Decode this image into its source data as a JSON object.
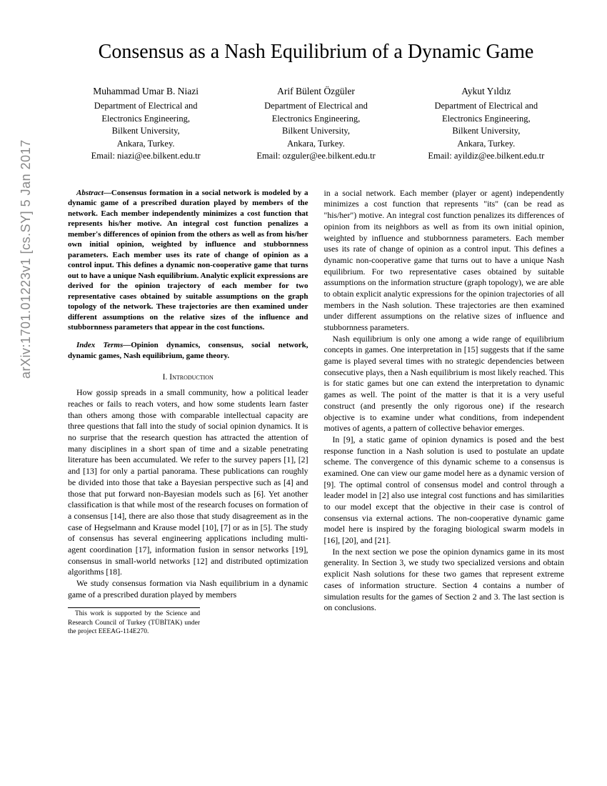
{
  "arxiv_stamp": "arXiv:1701.01223v1  [cs.SY]  5 Jan 2017",
  "title": "Consensus as a Nash Equilibrium of a Dynamic Game",
  "authors": [
    {
      "name": "Muhammad Umar B. Niazi",
      "dept": "Department of Electrical and",
      "dept2": "Electronics Engineering,",
      "univ": "Bilkent University,",
      "loc": "Ankara, Turkey.",
      "email": "Email: niazi@ee.bilkent.edu.tr"
    },
    {
      "name": "Arif Bülent Özgüler",
      "dept": "Department of Electrical and",
      "dept2": "Electronics Engineering,",
      "univ": "Bilkent University,",
      "loc": "Ankara, Turkey.",
      "email": "Email: ozguler@ee.bilkent.edu.tr"
    },
    {
      "name": "Aykut Yıldız",
      "dept": "Department of Electrical and",
      "dept2": "Electronics Engineering,",
      "univ": "Bilkent University,",
      "loc": "Ankara, Turkey.",
      "email": "Email: ayildiz@ee.bilkent.edu.tr"
    }
  ],
  "abstract_label": "Abstract—",
  "abstract": "Consensus formation in a social network is modeled by a dynamic game of a prescribed duration played by members of the network. Each member independently minimizes a cost function that represents his/her motive. An integral cost function penalizes a member's differences of opinion from the others as well as from his/her own initial opinion, weighted by influence and stubbornness parameters. Each member uses its rate of change of opinion as a control input. This defines a dynamic non-cooperative game that turns out to have a unique Nash equilibrium. Analytic explicit expressions are derived for the opinion trajectory of each member for two representative cases obtained by suitable assumptions on the graph topology of the network. These trajectories are then examined under different assumptions on the relative sizes of the influence and stubbornness parameters that appear in the cost functions.",
  "index_terms_label": "Index Terms—",
  "index_terms": "Opinion dynamics, consensus, social network, dynamic games, Nash equilibrium, game theory.",
  "section1_heading": "I.  Introduction",
  "intro_p1": "How gossip spreads in a small community, how a political leader reaches or fails to reach voters, and how some students learn faster than others among those with comparable intellectual capacity are three questions that fall into the study of social opinion dynamics. It is no surprise that the research question has attracted the attention of many disciplines in a short span of time and a sizable penetrating literature has been accumulated. We refer to the survey papers [1], [2] and [13] for only a partial panorama. These publications can roughly be divided into those that take a Bayesian perspective such as [4] and those that put forward non-Bayesian models such as [6]. Yet another classification is that while most of the research focuses on formation of a consensus [14], there are also those that study disagreement as in the case of Hegselmann and Krause model [10], [7] or as in [5]. The study of consensus has several engineering applications including multi-agent coordination [17], information fusion in sensor networks [19], consensus in small-world networks [12] and distributed optimization algorithms [18].",
  "intro_p2": "We study consensus formation via Nash equilibrium in a dynamic game of a prescribed duration played by members",
  "footnote": "This work is supported by the Science and Research Council of Turkey (TÜBİTAK) under the project EEEAG-114E270.",
  "col2_p1": "in a social network. Each member (player or agent) independently minimizes a cost function that represents \"its\" (can be read as \"his/her\") motive. An integral cost function penalizes its differences of opinion from its neighbors as well as from its own initial opinion, weighted by influence and stubbornness parameters. Each member uses its rate of change of opinion as a control input. This defines a dynamic non-cooperative game that turns out to have a unique Nash equilibrium. For two representative cases obtained by suitable assumptions on the information structure (graph topology), we are able to obtain explicit analytic expressions for the opinion trajectories of all members in the Nash solution. These trajectories are then examined under different assumptions on the relative sizes of influence and stubbornness parameters.",
  "col2_p2": "Nash equilibrium is only one among a wide range of equilibrium concepts in games. One interpretation in [15] suggests that if the same game is played several times with no strategic dependencies between consecutive plays, then a Nash equilibrium is most likely reached. This is for static games but one can extend the interpretation to dynamic games as well. The point of the matter is that it is a very useful construct (and presently the only rigorous one) if the research objective is to examine under what conditions, from independent motives of agents, a pattern of collective behavior emerges.",
  "col2_p3": "In [9], a static game of opinion dynamics is posed and the best response function in a Nash solution is used to postulate an update scheme. The convergence of this dynamic scheme to a consensus is examined. One can view our game model here as a dynamic version of [9]. The optimal control of consensus model and control through a leader model in [2] also use integral cost functions and has similarities to our model except that the objective in their case is control of consensus via external actions. The non-cooperative dynamic game model here is inspired by the foraging biological swarm models in [16], [20], and [21].",
  "col2_p4": "In the next section we pose the opinion dynamics game in its most generality. In Section 3, we study two specialized versions and obtain explicit Nash solutions for these two games that represent extreme cases of information structure. Section 4 contains a number of simulation results for the games of Section 2 and 3. The last section is on conclusions."
}
